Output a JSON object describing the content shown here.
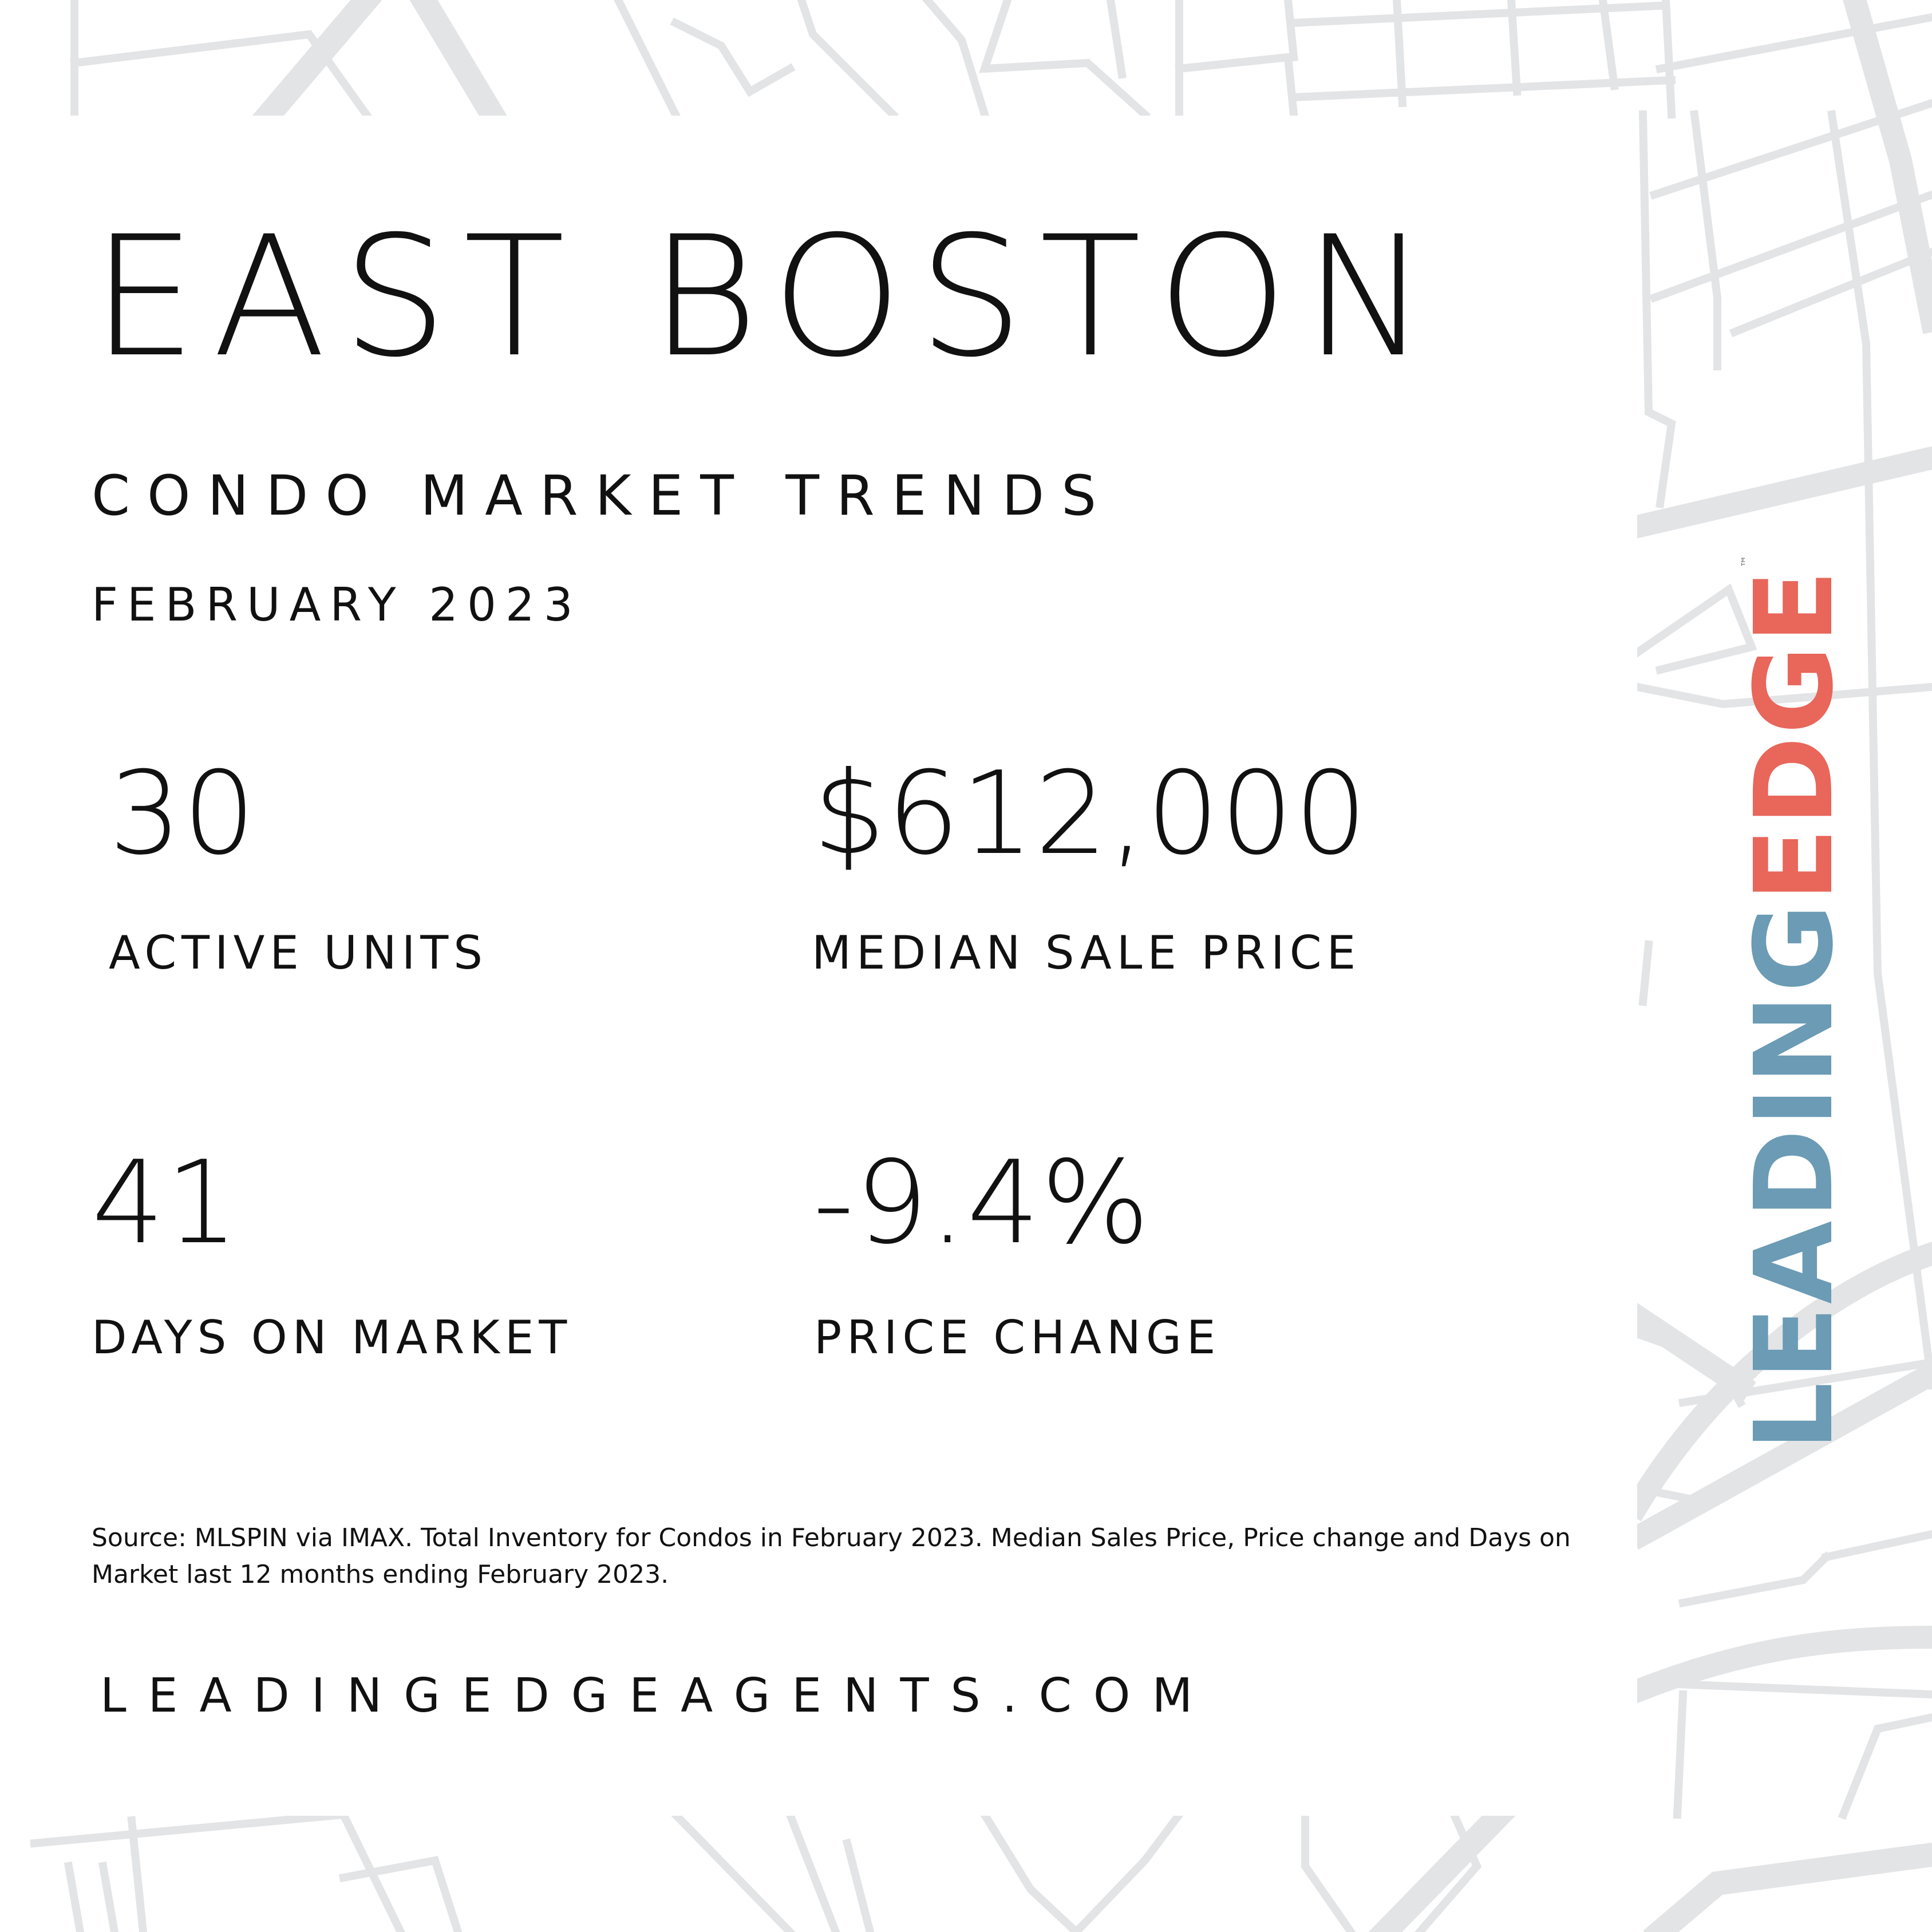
{
  "header": {
    "title": "EAST BOSTON",
    "subtitle": "CONDO MARKET TRENDS",
    "date": "FEBRUARY 2023"
  },
  "stats": [
    {
      "value": "30",
      "label": "ACTIVE UNITS"
    },
    {
      "value": "$612,000",
      "label": "MEDIAN SALE PRICE"
    },
    {
      "value": "41",
      "label": "DAYS ON MARKET"
    },
    {
      "value": "-9.4%",
      "label": "PRICE CHANGE"
    }
  ],
  "footer": {
    "source": "Source: MLSPIN via IMAX. Total Inventory for Condos in February 2023. Median Sales Price, Price change and Days on Market last 12 months ending February 2023.",
    "website": "LEADINGEDGEAGENTS.COM"
  },
  "logo": {
    "part1": "LEADING",
    "part2": "EDGE",
    "tm": "™",
    "colors": {
      "part1": "#6b9bb5",
      "part2": "#e8665a"
    }
  },
  "colors": {
    "background": "#ffffff",
    "map_lines": "#e3e4e6",
    "text": "#111111"
  }
}
